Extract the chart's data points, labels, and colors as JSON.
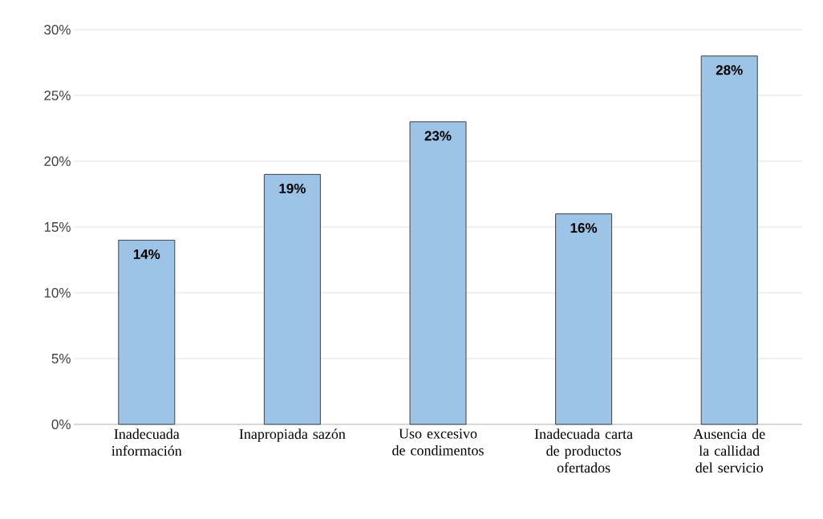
{
  "chart_data": {
    "type": "bar",
    "categories": [
      "Inadecuada información",
      "Inapropiada sazón",
      "Uso excesivo de condimentos",
      "Inadecuada carta de productos ofertados",
      "Ausencia de la callidad del servicio"
    ],
    "values": [
      14,
      19,
      23,
      16,
      28
    ],
    "value_labels": [
      "14%",
      "19%",
      "23%",
      "16%",
      "28%"
    ],
    "color": "#9dc3e6",
    "ylim": [
      0,
      30
    ],
    "yticks": [
      {
        "value": 0,
        "label": "0%"
      },
      {
        "value": 5,
        "label": "5%"
      },
      {
        "value": 10,
        "label": "10%"
      },
      {
        "value": 15,
        "label": "15%"
      },
      {
        "value": 20,
        "label": "20%"
      },
      {
        "value": 25,
        "label": "25%"
      },
      {
        "value": 30,
        "label": "30%"
      }
    ],
    "grid": "y"
  }
}
